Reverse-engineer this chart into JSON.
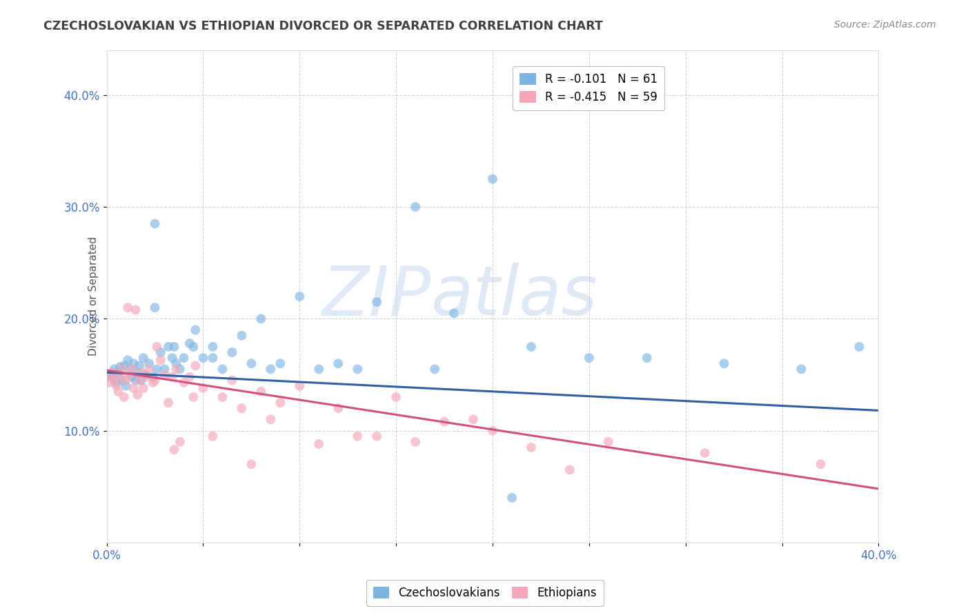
{
  "title": "CZECHOSLOVAKIAN VS ETHIOPIAN DIVORCED OR SEPARATED CORRELATION CHART",
  "source": "Source: ZipAtlas.com",
  "ylabel": "Divorced or Separated",
  "xlim": [
    0.0,
    0.4
  ],
  "ylim": [
    0.0,
    0.44
  ],
  "ytick_positions": [
    0.1,
    0.2,
    0.3,
    0.4
  ],
  "ytick_labels": [
    "10.0%",
    "20.0%",
    "30.0%",
    "40.0%"
  ],
  "legend_entries": [
    {
      "label": "R = -0.101   N = 61",
      "color": "#aec6ef"
    },
    {
      "label": "R = -0.415   N = 59",
      "color": "#f4a7b9"
    }
  ],
  "blue_scatter_x": [
    0.002,
    0.003,
    0.004,
    0.005,
    0.006,
    0.007,
    0.008,
    0.009,
    0.01,
    0.011,
    0.012,
    0.013,
    0.014,
    0.015,
    0.016,
    0.017,
    0.018,
    0.019,
    0.02,
    0.022,
    0.024,
    0.025,
    0.026,
    0.028,
    0.03,
    0.032,
    0.034,
    0.036,
    0.038,
    0.04,
    0.043,
    0.046,
    0.05,
    0.055,
    0.06,
    0.065,
    0.07,
    0.08,
    0.09,
    0.1,
    0.12,
    0.14,
    0.16,
    0.18,
    0.2,
    0.22,
    0.25,
    0.28,
    0.32,
    0.36,
    0.39,
    0.025,
    0.035,
    0.045,
    0.055,
    0.075,
    0.085,
    0.11,
    0.13,
    0.17,
    0.21
  ],
  "blue_scatter_y": [
    0.15,
    0.148,
    0.155,
    0.143,
    0.152,
    0.157,
    0.145,
    0.158,
    0.14,
    0.163,
    0.155,
    0.148,
    0.16,
    0.145,
    0.152,
    0.158,
    0.145,
    0.165,
    0.15,
    0.16,
    0.148,
    0.21,
    0.155,
    0.17,
    0.155,
    0.175,
    0.165,
    0.16,
    0.155,
    0.165,
    0.178,
    0.19,
    0.165,
    0.175,
    0.155,
    0.17,
    0.185,
    0.2,
    0.16,
    0.22,
    0.16,
    0.215,
    0.3,
    0.205,
    0.325,
    0.175,
    0.165,
    0.165,
    0.16,
    0.155,
    0.175,
    0.285,
    0.175,
    0.175,
    0.165,
    0.16,
    0.155,
    0.155,
    0.155,
    0.155,
    0.04
  ],
  "pink_scatter_x": [
    0.001,
    0.002,
    0.003,
    0.004,
    0.005,
    0.006,
    0.007,
    0.008,
    0.009,
    0.01,
    0.011,
    0.012,
    0.013,
    0.014,
    0.015,
    0.016,
    0.017,
    0.018,
    0.019,
    0.02,
    0.022,
    0.024,
    0.026,
    0.028,
    0.03,
    0.032,
    0.034,
    0.036,
    0.038,
    0.04,
    0.043,
    0.046,
    0.05,
    0.055,
    0.06,
    0.065,
    0.07,
    0.08,
    0.09,
    0.1,
    0.11,
    0.12,
    0.14,
    0.16,
    0.19,
    0.22,
    0.26,
    0.31,
    0.37,
    0.025,
    0.035,
    0.045,
    0.075,
    0.085,
    0.13,
    0.15,
    0.175,
    0.2,
    0.24
  ],
  "pink_scatter_y": [
    0.143,
    0.148,
    0.152,
    0.145,
    0.14,
    0.135,
    0.148,
    0.155,
    0.13,
    0.145,
    0.21,
    0.15,
    0.155,
    0.138,
    0.208,
    0.132,
    0.145,
    0.152,
    0.138,
    0.148,
    0.155,
    0.143,
    0.175,
    0.163,
    0.15,
    0.125,
    0.148,
    0.155,
    0.09,
    0.143,
    0.148,
    0.158,
    0.138,
    0.095,
    0.13,
    0.145,
    0.12,
    0.135,
    0.125,
    0.14,
    0.088,
    0.12,
    0.095,
    0.09,
    0.11,
    0.085,
    0.09,
    0.08,
    0.07,
    0.145,
    0.083,
    0.13,
    0.07,
    0.11,
    0.095,
    0.13,
    0.108,
    0.1,
    0.065
  ],
  "blue_line_x": [
    0.0,
    0.4
  ],
  "blue_line_y": [
    0.152,
    0.118
  ],
  "pink_line_x": [
    0.0,
    0.4
  ],
  "pink_line_y": [
    0.154,
    0.048
  ],
  "watermark_zip": "ZIP",
  "watermark_atlas": "atlas",
  "background_color": "#ffffff",
  "scatter_alpha": 0.65,
  "scatter_size": 100,
  "blue_color": "#7eb4e2",
  "pink_color": "#f4a7b9",
  "blue_line_color": "#2e5fa3",
  "pink_line_color": "#d44f7a",
  "grid_color": "#c8c8c8",
  "title_color": "#404040",
  "source_color": "#888888",
  "tick_label_color": "#4472c4",
  "ylabel_color": "#555555"
}
